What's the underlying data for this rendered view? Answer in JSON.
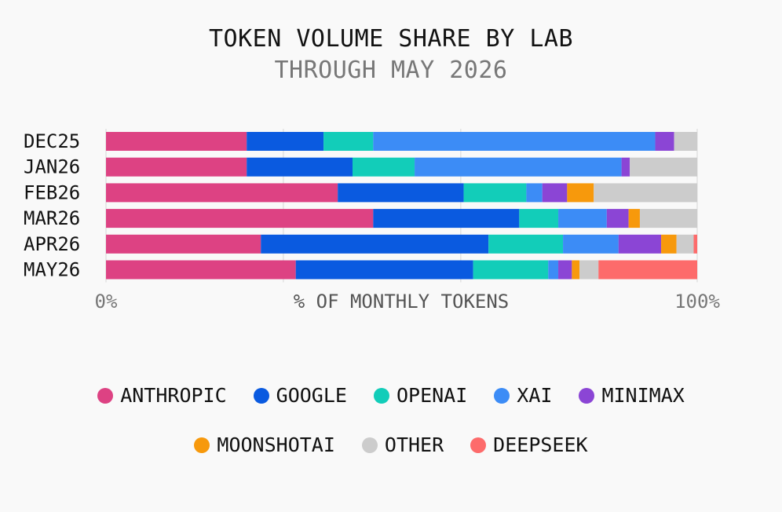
{
  "chart_data": {
    "type": "bar",
    "orientation": "horizontal",
    "stacked": true,
    "title": "TOKEN VOLUME SHARE BY LAB",
    "subtitle": "THROUGH MAY 2026",
    "xlabel": "% OF MONTHLY TOKENS",
    "xlim": [
      0,
      100
    ],
    "x_tick_labels": [
      "0%",
      "100%"
    ],
    "grid": true,
    "legend_position": "bottom",
    "categories": [
      "DEC25",
      "JAN26",
      "FEB26",
      "MAR26",
      "APR26",
      "MAY26"
    ],
    "series": [
      {
        "name": "ANTHROPIC",
        "color": "#dd4283",
        "values": [
          23.8,
          23.8,
          39.2,
          45.2,
          26.2,
          32.1
        ]
      },
      {
        "name": "GOOGLE",
        "color": "#0a5ae0",
        "values": [
          13.0,
          17.9,
          21.3,
          24.7,
          38.5,
          30.0
        ]
      },
      {
        "name": "OPENAI",
        "color": "#12cdb9",
        "values": [
          8.4,
          10.5,
          10.6,
          6.6,
          12.6,
          12.7
        ]
      },
      {
        "name": "XAI",
        "color": "#3c8cf6",
        "values": [
          47.7,
          35.0,
          2.7,
          8.2,
          9.4,
          1.7
        ]
      },
      {
        "name": "MINIMAX",
        "color": "#8b45d5",
        "values": [
          3.2,
          1.4,
          4.2,
          3.7,
          7.2,
          2.3
        ]
      },
      {
        "name": "MOONSHOTAI",
        "color": "#f7990c",
        "values": [
          0.0,
          0.0,
          4.5,
          1.9,
          2.6,
          1.3
        ]
      },
      {
        "name": "OTHER",
        "color": "#cccccc",
        "values": [
          3.9,
          11.4,
          17.5,
          9.7,
          2.9,
          3.2
        ]
      },
      {
        "name": "DEEPSEEK",
        "color": "#fd6b6b",
        "values": [
          0.0,
          0.0,
          0.0,
          0.0,
          0.6,
          16.7
        ]
      }
    ]
  }
}
